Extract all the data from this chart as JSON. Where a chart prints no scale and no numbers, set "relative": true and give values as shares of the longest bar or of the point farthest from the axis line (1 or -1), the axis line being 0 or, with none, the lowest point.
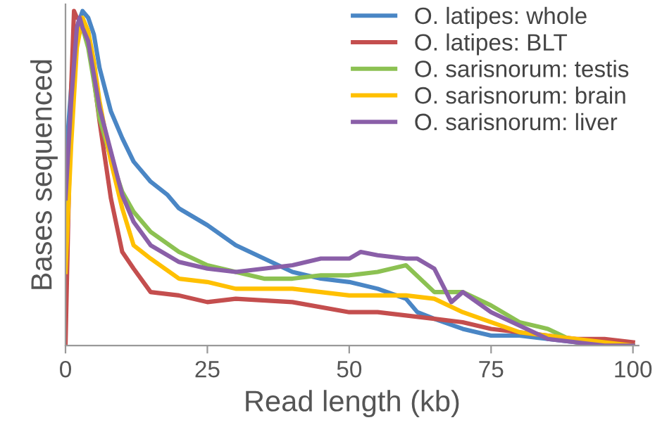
{
  "chart_data": {
    "type": "line",
    "relative": true,
    "xlabel": "Read length (kb)",
    "ylabel": "Bases sequenced",
    "xlim": [
      0,
      101
    ],
    "xticks": [
      0,
      25,
      50,
      75,
      100
    ],
    "legend": "top right",
    "grid": false,
    "marker": "none",
    "line_style": "solid",
    "series": [
      {
        "name": "O. latipes: whole",
        "color": "#4a86c5",
        "x": [
          0,
          1,
          2,
          3,
          4,
          5,
          6,
          8,
          10,
          12,
          15,
          18,
          20,
          25,
          30,
          35,
          40,
          45,
          50,
          55,
          60,
          62,
          65,
          70,
          75,
          80,
          85,
          90,
          95,
          100
        ],
        "values": [
          0.54,
          0.77,
          0.95,
          1.0,
          0.98,
          0.93,
          0.83,
          0.7,
          0.62,
          0.55,
          0.49,
          0.45,
          0.41,
          0.36,
          0.3,
          0.26,
          0.22,
          0.2,
          0.19,
          0.17,
          0.14,
          0.1,
          0.08,
          0.05,
          0.03,
          0.03,
          0.02,
          0.01,
          0.0,
          0.0
        ]
      },
      {
        "name": "O. latipes: BLT",
        "color": "#c44e4e",
        "x": [
          0,
          1,
          1.5,
          2,
          3,
          4,
          5,
          6,
          8,
          10,
          12,
          15,
          20,
          25,
          30,
          40,
          50,
          55,
          60,
          65,
          70,
          75,
          80,
          85,
          90,
          95,
          100
        ],
        "values": [
          0,
          0.77,
          1.0,
          0.98,
          0.97,
          0.92,
          0.8,
          0.67,
          0.44,
          0.28,
          0.23,
          0.16,
          0.15,
          0.13,
          0.14,
          0.13,
          0.1,
          0.1,
          0.09,
          0.08,
          0.07,
          0.05,
          0.04,
          0.03,
          0.02,
          0.02,
          0.01
        ]
      },
      {
        "name": "O. sarisnorum: testis",
        "color": "#8cc152",
        "x": [
          0,
          1,
          2,
          3,
          4,
          5,
          6,
          8,
          10,
          12,
          15,
          20,
          25,
          30,
          35,
          40,
          45,
          50,
          55,
          60,
          65,
          70,
          75,
          80,
          85,
          90,
          95,
          100
        ],
        "values": [
          0.38,
          0.68,
          0.93,
          0.95,
          0.89,
          0.79,
          0.68,
          0.56,
          0.46,
          0.4,
          0.34,
          0.28,
          0.24,
          0.22,
          0.2,
          0.2,
          0.21,
          0.21,
          0.22,
          0.24,
          0.16,
          0.16,
          0.12,
          0.07,
          0.05,
          0.01,
          0.0,
          0.0
        ]
      },
      {
        "name": "O. sarisnorum: brain",
        "color": "#ffc000",
        "x": [
          0,
          1,
          2,
          3,
          4,
          5,
          6,
          8,
          10,
          12,
          15,
          20,
          25,
          30,
          40,
          50,
          55,
          60,
          65,
          70,
          75,
          80,
          85,
          90,
          95,
          100
        ],
        "values": [
          0.22,
          0.6,
          0.89,
          0.98,
          0.94,
          0.85,
          0.73,
          0.55,
          0.41,
          0.3,
          0.26,
          0.2,
          0.19,
          0.17,
          0.17,
          0.15,
          0.15,
          0.15,
          0.14,
          0.1,
          0.07,
          0.04,
          0.03,
          0.02,
          0.01,
          0.0
        ]
      },
      {
        "name": "O. sarisnorum: liver",
        "color": "#8a5fa8",
        "x": [
          0,
          1,
          2,
          2.5,
          3,
          4,
          5,
          6,
          8,
          10,
          12,
          15,
          20,
          25,
          30,
          35,
          40,
          45,
          50,
          52,
          55,
          60,
          62,
          65,
          68,
          70,
          75,
          80,
          85,
          90,
          95,
          100
        ],
        "values": [
          0.44,
          0.73,
          0.95,
          0.98,
          0.95,
          0.91,
          0.81,
          0.71,
          0.58,
          0.45,
          0.37,
          0.3,
          0.25,
          0.23,
          0.22,
          0.23,
          0.24,
          0.26,
          0.26,
          0.28,
          0.27,
          0.26,
          0.26,
          0.23,
          0.13,
          0.16,
          0.1,
          0.06,
          0.02,
          0.01,
          0.0,
          0.0
        ]
      }
    ]
  }
}
